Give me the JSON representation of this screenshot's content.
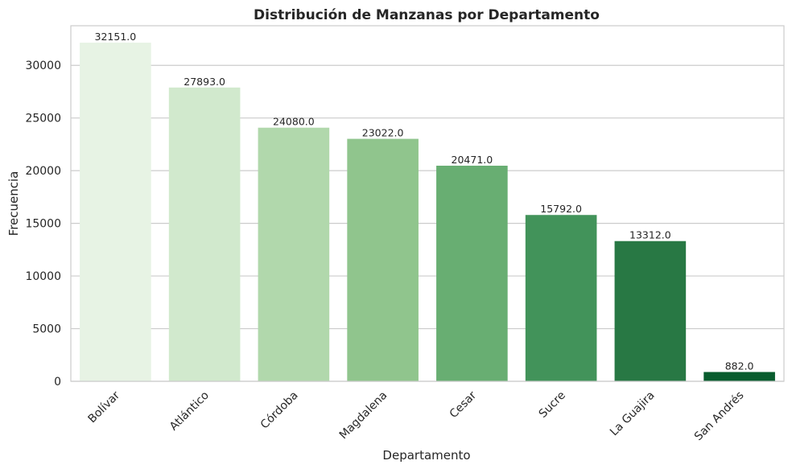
{
  "chart_data": {
    "type": "bar",
    "title": "Distribución de Manzanas por Departamento",
    "xlabel": "Departamento",
    "ylabel": "Frecuencia",
    "categories": [
      "Bolívar",
      "Atlántico",
      "Córdoba",
      "Magdalena",
      "Cesar",
      "Sucre",
      "La Guajira",
      "San Andrés"
    ],
    "values": [
      32151.0,
      27893.0,
      24080.0,
      23022.0,
      20471.0,
      15792.0,
      13312.0,
      882.0
    ],
    "value_labels": [
      "32151.0",
      "27893.0",
      "24080.0",
      "23022.0",
      "20471.0",
      "15792.0",
      "13312.0",
      "882.0"
    ],
    "ylim": [
      0,
      33760
    ],
    "yticks": [
      0,
      5000,
      10000,
      15000,
      20000,
      25000,
      30000
    ],
    "ytick_labels": [
      "0",
      "5000",
      "10000",
      "15000",
      "20000",
      "25000",
      "30000"
    ],
    "grid": "horizontal",
    "legend": "none",
    "colors": [
      "#e7f3e4",
      "#d1e9cd",
      "#b1d8ac",
      "#90c58d",
      "#68ae72",
      "#42935a",
      "#287844",
      "#095c2e"
    ],
    "text_color": "#262626",
    "grid_color": "#cccccc",
    "frame_color": "#cccccc"
  }
}
